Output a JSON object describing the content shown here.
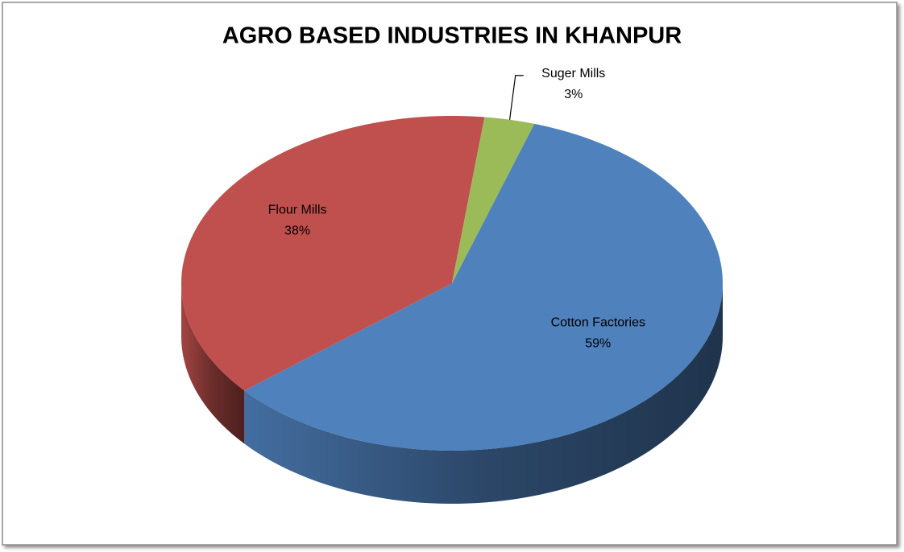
{
  "chart_data": {
    "type": "pie",
    "title": "AGRO BASED INDUSTRIES IN KHANPUR",
    "categories": [
      "Cotton Factories",
      "Flour Mills",
      "Suger Mills"
    ],
    "values": [
      59,
      38,
      3
    ],
    "value_labels": [
      "59%",
      "38%",
      "3%"
    ],
    "colors": [
      "#4f81bd",
      "#c0504d",
      "#9bbb59"
    ]
  }
}
